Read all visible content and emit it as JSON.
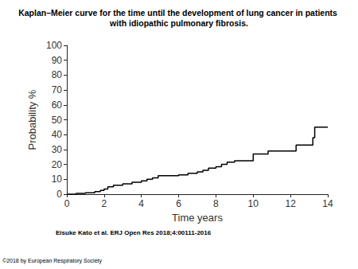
{
  "chart_data": {
    "type": "line",
    "title": "Kaplan–Meier curve for the time until the development of lung cancer in patients with idiopathic pulmonary fibrosis.",
    "x_label": "Time years",
    "y_label": "Probability %",
    "x": [
      0,
      0.5,
      1,
      1.5,
      1.8,
      2,
      2.2,
      2.5,
      3,
      3.5,
      4,
      4.3,
      4.6,
      4.9,
      5.5,
      6,
      6.5,
      7,
      7.3,
      7.6,
      8,
      8.3,
      8.6,
      9,
      10,
      10.8,
      12.3,
      13.2,
      13.3,
      14
    ],
    "values": [
      0,
      0.5,
      1,
      1.8,
      2.5,
      3.5,
      5,
      6,
      7,
      8,
      9,
      10,
      11,
      12.5,
      12.5,
      13,
      14,
      15,
      16,
      17.5,
      18.5,
      20,
      21.5,
      22.5,
      27,
      29,
      33,
      38,
      45,
      45
    ],
    "color": "#000000",
    "line_style": "step",
    "xlim": [
      0,
      14
    ],
    "xticks": [
      0,
      2,
      4,
      6,
      8,
      10,
      12,
      14
    ],
    "ylim": [
      0,
      100
    ],
    "yticks": [
      0,
      10,
      20,
      30,
      40,
      50,
      60,
      70,
      80,
      90,
      100
    ],
    "grid": false,
    "annotations": [
      "Eisuke Kato et al. ERJ Open Res 2018;4:00111-2016",
      "©2018 by European Respiratory Society"
    ]
  }
}
